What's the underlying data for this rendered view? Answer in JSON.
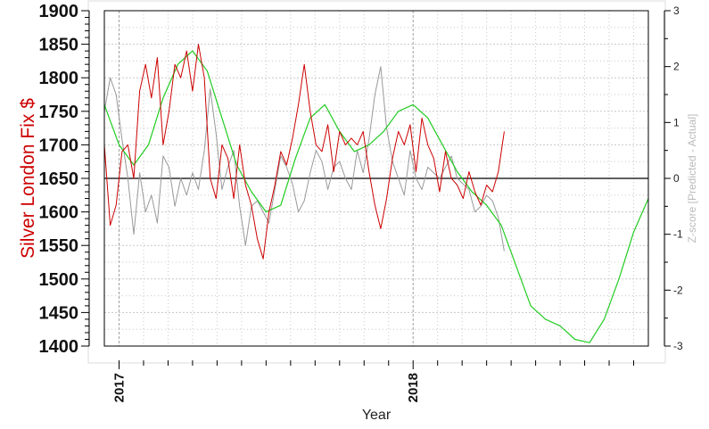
{
  "chart_data": {
    "type": "line",
    "xlabel": "Year",
    "ylabel": "Silver London Fix $",
    "y2label": "Z-score [Predicted - Actual]",
    "x_ticks": [
      "2017",
      "2018"
    ],
    "ylim": [
      1400,
      1900
    ],
    "y_ticks": [
      1400,
      1450,
      1500,
      1550,
      1600,
      1650,
      1700,
      1750,
      1800,
      1850,
      1900
    ],
    "y2lim": [
      -3,
      3
    ],
    "y2_ticks": [
      -3,
      -2,
      -1,
      0,
      1,
      2,
      3
    ],
    "xlim": [
      2016.95,
      2018.8
    ],
    "zero_line_value": 0,
    "grid": true,
    "colors": {
      "actual": "#cc0000",
      "predicted": "#22cc22",
      "zscore": "#999999",
      "zero_line": "#000000",
      "grid": "#c8c8c8"
    },
    "series": [
      {
        "key": "actual",
        "axis": "left",
        "x": [
          2016.95,
          2016.97,
          2016.99,
          2017.01,
          2017.03,
          2017.05,
          2017.07,
          2017.09,
          2017.11,
          2017.13,
          2017.15,
          2017.17,
          2017.19,
          2017.21,
          2017.23,
          2017.25,
          2017.27,
          2017.29,
          2017.31,
          2017.33,
          2017.35,
          2017.37,
          2017.39,
          2017.41,
          2017.43,
          2017.45,
          2017.47,
          2017.49,
          2017.51,
          2017.53,
          2017.55,
          2017.57,
          2017.59,
          2017.61,
          2017.63,
          2017.65,
          2017.67,
          2017.69,
          2017.71,
          2017.73,
          2017.75,
          2017.77,
          2017.79,
          2017.81,
          2017.83,
          2017.85,
          2017.87,
          2017.89,
          2017.91,
          2017.93,
          2017.95,
          2017.97,
          2017.99,
          2018.01,
          2018.03,
          2018.05,
          2018.07,
          2018.09,
          2018.11,
          2018.13,
          2018.15,
          2018.17,
          2018.19,
          2018.21,
          2018.23,
          2018.25,
          2018.27,
          2018.29,
          2018.31
        ],
        "values": [
          1700,
          1580,
          1610,
          1690,
          1700,
          1650,
          1780,
          1820,
          1770,
          1830,
          1700,
          1750,
          1820,
          1800,
          1840,
          1780,
          1850,
          1800,
          1650,
          1620,
          1700,
          1680,
          1620,
          1700,
          1640,
          1610,
          1560,
          1530,
          1600,
          1640,
          1690,
          1670,
          1710,
          1760,
          1820,
          1750,
          1700,
          1690,
          1730,
          1660,
          1720,
          1700,
          1710,
          1700,
          1720,
          1660,
          1610,
          1575,
          1620,
          1680,
          1720,
          1700,
          1730,
          1660,
          1740,
          1700,
          1680,
          1630,
          1690,
          1650,
          1640,
          1620,
          1660,
          1630,
          1610,
          1640,
          1630,
          1660,
          1720
        ]
      },
      {
        "key": "predicted",
        "axis": "left",
        "x": [
          2016.95,
          2017.0,
          2017.05,
          2017.1,
          2017.15,
          2017.2,
          2017.25,
          2017.3,
          2017.35,
          2017.4,
          2017.45,
          2017.5,
          2017.55,
          2017.6,
          2017.65,
          2017.7,
          2017.75,
          2017.8,
          2017.85,
          2017.9,
          2017.95,
          2018.0,
          2018.05,
          2018.1,
          2018.15,
          2018.2,
          2018.25,
          2018.3,
          2018.35,
          2018.4,
          2018.45,
          2018.5,
          2018.55,
          2018.6,
          2018.65,
          2018.7,
          2018.75,
          2018.8
        ],
        "values": [
          1760,
          1700,
          1670,
          1700,
          1770,
          1820,
          1840,
          1810,
          1740,
          1670,
          1630,
          1600,
          1610,
          1680,
          1740,
          1760,
          1720,
          1690,
          1700,
          1720,
          1750,
          1760,
          1740,
          1700,
          1660,
          1630,
          1610,
          1580,
          1520,
          1460,
          1440,
          1430,
          1410,
          1405,
          1440,
          1500,
          1570,
          1620
        ]
      },
      {
        "key": "zscore",
        "axis": "right",
        "x": [
          2016.95,
          2016.97,
          2016.99,
          2017.01,
          2017.03,
          2017.05,
          2017.07,
          2017.09,
          2017.11,
          2017.13,
          2017.15,
          2017.17,
          2017.19,
          2017.21,
          2017.23,
          2017.25,
          2017.27,
          2017.29,
          2017.31,
          2017.33,
          2017.35,
          2017.37,
          2017.39,
          2017.41,
          2017.43,
          2017.45,
          2017.47,
          2017.49,
          2017.51,
          2017.53,
          2017.55,
          2017.57,
          2017.59,
          2017.61,
          2017.63,
          2017.65,
          2017.67,
          2017.69,
          2017.71,
          2017.73,
          2017.75,
          2017.77,
          2017.79,
          2017.81,
          2017.83,
          2017.85,
          2017.87,
          2017.89,
          2017.91,
          2017.93,
          2017.95,
          2017.97,
          2017.99,
          2018.01,
          2018.03,
          2018.05,
          2018.07,
          2018.09,
          2018.11,
          2018.13,
          2018.15,
          2018.17,
          2018.19,
          2018.21,
          2018.23,
          2018.25,
          2018.27,
          2018.29,
          2018.31
        ],
        "values": [
          1.2,
          1.8,
          1.5,
          0.7,
          0.0,
          -1.0,
          0.1,
          -0.6,
          -0.3,
          -0.8,
          0.4,
          0.2,
          -0.5,
          0.0,
          -0.3,
          0.1,
          -0.2,
          0.5,
          1.6,
          0.8,
          -0.2,
          0.2,
          0.5,
          -0.5,
          -1.2,
          -0.5,
          -0.4,
          -0.6,
          -0.8,
          -0.2,
          0.4,
          0.2,
          -0.1,
          -0.6,
          -0.4,
          0.1,
          0.5,
          0.3,
          -0.2,
          0.2,
          0.3,
          0.0,
          -0.2,
          0.5,
          0.1,
          0.7,
          1.5,
          2.0,
          0.9,
          0.3,
          0.0,
          -0.3,
          0.5,
          0.0,
          -0.2,
          0.2,
          0.1,
          0.0,
          0.2,
          0.4,
          0.0,
          -0.1,
          -0.2,
          -0.6,
          -0.5,
          -0.3,
          -0.4,
          -0.7,
          -1.3
        ]
      }
    ]
  }
}
